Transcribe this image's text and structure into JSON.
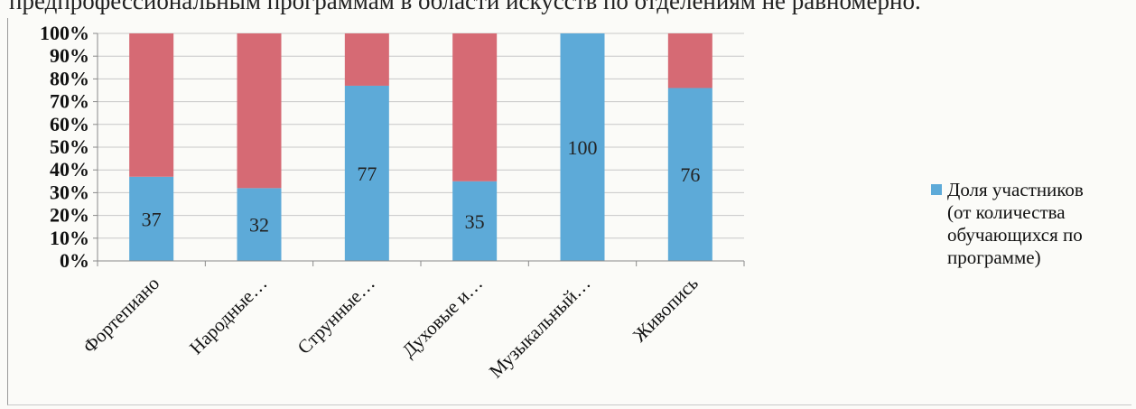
{
  "page": {
    "top_text": "предпрофессиональным программам в области искусств по отделениям не равномерно."
  },
  "colors": {
    "series_blue": "#5daad8",
    "series_red": "#d66a74",
    "axis": "#8a8a8a",
    "grid": "#c8c8c8"
  },
  "chart_data": {
    "type": "bar",
    "stacked": true,
    "categories": [
      "Фортепиано",
      "Народные…",
      "Струнные…",
      "Духовые и…",
      "Музыкальный…",
      "Живопись"
    ],
    "series": [
      {
        "name": "Доля участников (от количества обучающихся по программе)",
        "values": [
          37,
          32,
          77,
          35,
          100,
          76
        ],
        "color": "#5daad8",
        "data_labels": [
          "37",
          "32",
          "77",
          "35",
          "100",
          "76"
        ]
      },
      {
        "values": [
          63,
          68,
          23,
          65,
          0,
          24
        ],
        "color": "#d66a74"
      }
    ],
    "ylim": [
      0,
      100
    ],
    "y_ticks": [
      "0%",
      "10%",
      "20%",
      "30%",
      "40%",
      "50%",
      "60%",
      "70%",
      "80%",
      "90%",
      "100%"
    ],
    "grid": true,
    "legend_position": "right",
    "legend": {
      "marker_color": "#5daad8",
      "label_lines": [
        "Доля участников",
        "(от количества",
        "обучающихся по",
        "программе)"
      ]
    }
  }
}
